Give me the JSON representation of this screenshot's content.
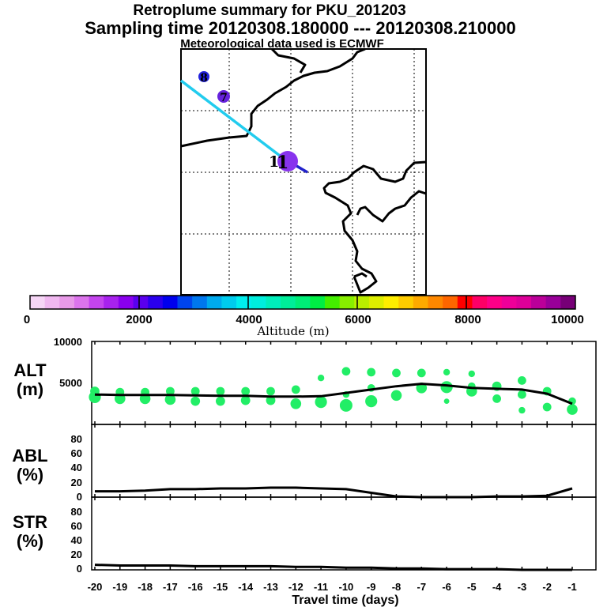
{
  "title": {
    "line1": "Retroplume summary for PKU_201203",
    "line2": "Sampling time   20120308.180000 --- 20120308.210000",
    "line3": "Meteorological data used is ECMWF"
  },
  "map": {
    "release_label": "1",
    "trajectory_color": "#22ccee",
    "points": [
      {
        "label": "8",
        "color": "#2222dd"
      },
      {
        "label": "7",
        "color": "#6622dd"
      },
      {
        "label": "1",
        "color": "#8833ee"
      }
    ]
  },
  "colorbar": {
    "label": "Altitude (m)",
    "ticks": [
      "0",
      "2000",
      "4000",
      "6000",
      "8000",
      "10000"
    ],
    "colors": [
      "#f6d6f6",
      "#f0b8f0",
      "#e89ae8",
      "#dc74ec",
      "#c444ee",
      "#a822ee",
      "#8a00ee",
      "#5a00ee",
      "#2a00ee",
      "#0000ee",
      "#0044ee",
      "#0077ee",
      "#00aaee",
      "#00ccee",
      "#00eeee",
      "#00eedd",
      "#00eebb",
      "#00ee99",
      "#00ee77",
      "#00ee44",
      "#44ee00",
      "#88ee00",
      "#bbee00",
      "#ddee00",
      "#ffee00",
      "#ffcc00",
      "#ffaa00",
      "#ff8800",
      "#ff6600",
      "#ff0000",
      "#ff0066",
      "#ff0088",
      "#ee0099",
      "#dd0099",
      "#bb0099",
      "#990099",
      "#770077"
    ]
  },
  "chart_data": [
    {
      "type": "line",
      "panel": "ALT",
      "ylabel": "ALT\n(m)",
      "ylabel_line1": "ALT",
      "ylabel_line2": "(m)",
      "xlabel": "Travel time (days)",
      "xlim": [
        -20,
        -1
      ],
      "ylim": [
        0,
        10000
      ],
      "yticks": [
        "5000",
        "10000"
      ],
      "xticks": [
        "-20",
        "-19",
        "-18",
        "-17",
        "-16",
        "-15",
        "-14",
        "-13",
        "-12",
        "-11",
        "-10",
        "-9",
        "-8",
        "-7",
        "-6",
        "-5",
        "-4",
        "-3",
        "-2",
        "-1"
      ],
      "mean_altitude": {
        "x": [
          -20,
          -19,
          -18,
          -17,
          -16,
          -15,
          -14,
          -13,
          -12,
          -11,
          -10,
          -9,
          -8,
          -7,
          -6,
          -5,
          -4,
          -3,
          -2,
          -1
        ],
        "y": [
          3600,
          3550,
          3550,
          3550,
          3500,
          3450,
          3450,
          3350,
          3350,
          3400,
          3800,
          4200,
          4600,
          4900,
          4700,
          4400,
          4300,
          4200,
          3700,
          2500
        ]
      },
      "clusters": {
        "x": [
          -20,
          -20,
          -19,
          -19,
          -18,
          -18,
          -17,
          -17,
          -16,
          -16,
          -15,
          -15,
          -14,
          -14,
          -13,
          -13,
          -12,
          -12,
          -11,
          -11,
          -10,
          -10,
          -10,
          -9,
          -9,
          -9,
          -8,
          -8,
          -7,
          -7,
          -6,
          -6,
          -6,
          -5,
          -5,
          -5,
          -4,
          -4,
          -3,
          -3,
          -3,
          -2,
          -2,
          -1,
          -1
        ],
        "y": [
          3300,
          4000,
          3100,
          3900,
          3100,
          3900,
          3000,
          4000,
          2800,
          4000,
          2800,
          4000,
          2900,
          4000,
          2900,
          4000,
          2500,
          4200,
          2700,
          5600,
          2300,
          3600,
          6400,
          2800,
          4400,
          6300,
          3500,
          6200,
          4400,
          6200,
          4500,
          6300,
          2800,
          4000,
          4600,
          6100,
          3100,
          4600,
          1700,
          3600,
          5300,
          2100,
          4000,
          1800,
          2800
        ],
        "weights": [
          10,
          6,
          8,
          5,
          8,
          5,
          8,
          5,
          6,
          5,
          6,
          5,
          6,
          5,
          6,
          5,
          8,
          5,
          10,
          3,
          11,
          3,
          5,
          10,
          4,
          5,
          8,
          5,
          8,
          5,
          10,
          3,
          2,
          8,
          4,
          3,
          5,
          6,
          3,
          5,
          5,
          5,
          5,
          8,
          4
        ]
      }
    },
    {
      "type": "line",
      "panel": "ABL",
      "ylabel_line1": "ABL",
      "ylabel_line2": "(%)",
      "xlim": [
        -20,
        -1
      ],
      "ylim": [
        0,
        100
      ],
      "yticks": [
        "0",
        "20",
        "40",
        "60",
        "80"
      ],
      "x": [
        -20,
        -19,
        -18,
        -17,
        -16,
        -15,
        -14,
        -13,
        -12,
        -11,
        -10,
        -9,
        -8,
        -7,
        -6,
        -5,
        -4,
        -3,
        -2,
        -1
      ],
      "y": [
        8,
        8,
        9,
        11,
        11,
        12,
        12,
        13,
        13,
        12,
        11,
        6,
        1,
        0,
        0,
        0,
        1,
        1,
        2,
        12
      ]
    },
    {
      "type": "line",
      "panel": "STR",
      "ylabel_line1": "STR",
      "ylabel_line2": "(%)",
      "xlim": [
        -20,
        -1
      ],
      "ylim": [
        0,
        100
      ],
      "yticks": [
        "0",
        "20",
        "40",
        "60",
        "80"
      ],
      "x": [
        -20,
        -19,
        -18,
        -17,
        -16,
        -15,
        -14,
        -13,
        -12,
        -11,
        -10,
        -9,
        -8,
        -7,
        -6,
        -5,
        -4,
        -3,
        -2,
        -1
      ],
      "y": [
        7,
        6,
        6,
        6,
        5,
        5,
        5,
        5,
        4,
        4,
        3,
        3,
        2,
        2,
        1,
        1,
        1,
        0,
        0,
        0
      ]
    }
  ]
}
